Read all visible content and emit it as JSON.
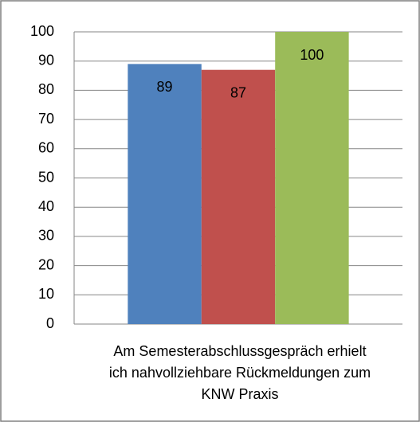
{
  "chart_data": {
    "type": "bar",
    "categories": [
      "Am Semesterabschlussgespräch erhielt ich nahvollziehbare Rückmeldungen zum KNW Praxis"
    ],
    "series": [
      {
        "color": "#4f81bd",
        "values": [
          89
        ]
      },
      {
        "color": "#c0504d",
        "values": [
          87
        ]
      },
      {
        "color": "#9bbb59",
        "values": [
          100
        ]
      }
    ],
    "ylim": [
      0,
      100
    ],
    "yticks": [
      0,
      10,
      20,
      30,
      40,
      50,
      60,
      70,
      80,
      90,
      100
    ],
    "grid": true
  }
}
